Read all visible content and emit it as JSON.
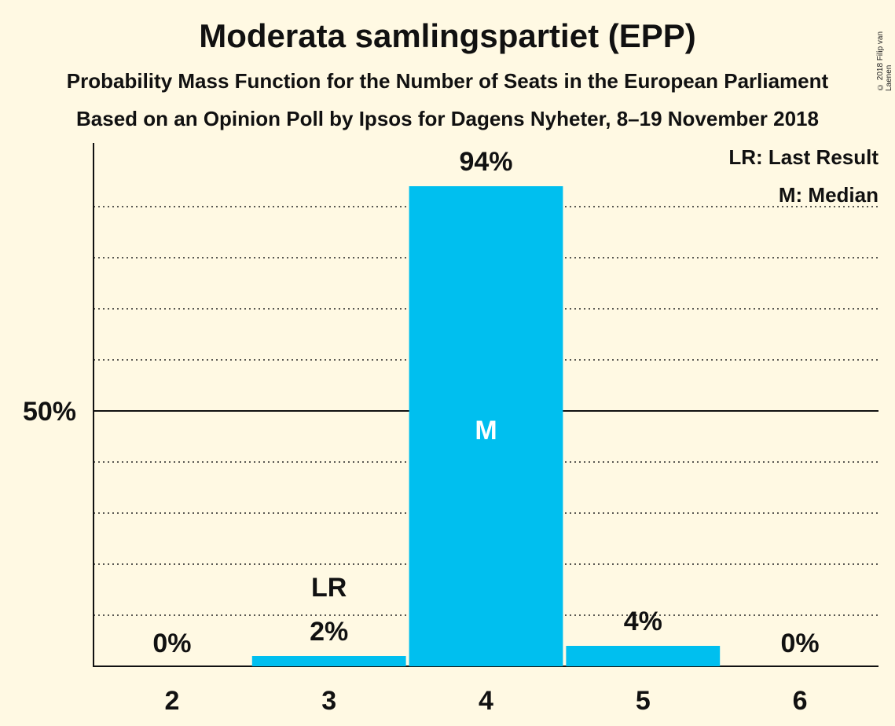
{
  "title": "Moderata samlingspartiet (EPP)",
  "subtitle": "Probability Mass Function for the Number of Seats in the European Parliament",
  "subtitle2": "Based on an Opinion Poll by Ipsos for Dagens Nyheter, 8–19 November 2018",
  "copyright": "© 2018 Filip van Laenen",
  "legend": {
    "last_result": "LR: Last Result",
    "median": "M: Median"
  },
  "colors": {
    "bar": "#00BFEF",
    "background": "#FFF9E3",
    "text": "#111111"
  },
  "chart_data": {
    "type": "bar",
    "categories": [
      "2",
      "3",
      "4",
      "5",
      "6"
    ],
    "values": [
      0,
      2,
      94,
      4,
      0
    ],
    "value_labels": [
      "0%",
      "2%",
      "94%",
      "4%",
      "0%"
    ],
    "ylim": [
      0,
      100
    ],
    "y_ticks": [
      {
        "value": 50,
        "label": "50%"
      }
    ],
    "grid": "dotted every 10%",
    "legend_placement": "top-right",
    "markers": {
      "last_result": {
        "category": "3",
        "label": "LR"
      },
      "median": {
        "category": "4",
        "label": "M"
      }
    }
  }
}
